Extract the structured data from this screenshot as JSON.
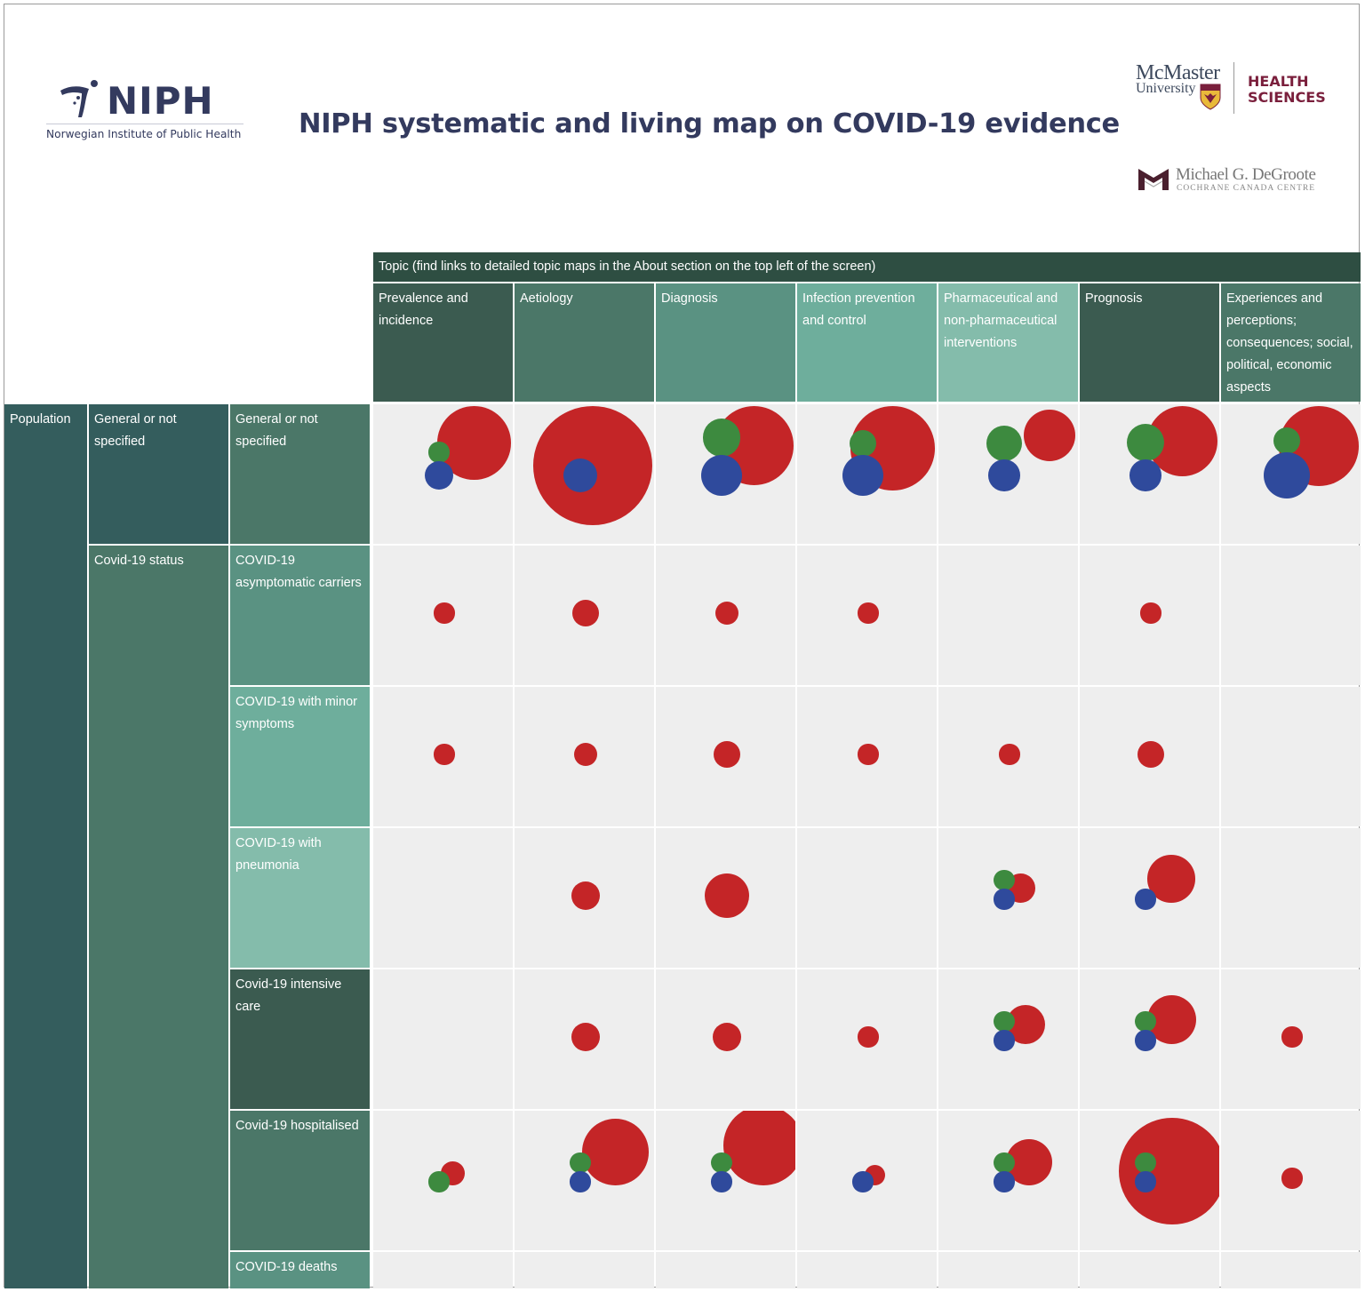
{
  "header": {
    "title": "NIPH systematic and living map on COVID-19 evidence",
    "niph_logo_text": "NIPH",
    "niph_logo_subtitle": "Norwegian Institute of Public Health",
    "mcmaster_name": "McMaster",
    "mcmaster_university": "University",
    "health_line1": "HEALTH",
    "health_line2": "SCIENCES",
    "degroote_name": "Michael G. DeGroote",
    "degroote_sub": "COCHRANE CANADA CENTRE"
  },
  "colors": {
    "red": "#c42527",
    "green": "#3d8a3f",
    "blue": "#2f4a9c",
    "cell_bg": "#eeeeee",
    "topic_bar": "#2e4e42"
  },
  "chart_data": {
    "type": "scatter",
    "title": "NIPH systematic and living map on COVID-19 evidence",
    "encoding": "bubble size = relative magnitude (0-100) estimated visually from marker diameter; no counts, legend or size key are shown in the image",
    "value_scale": "relative, 0-100",
    "topic_header": "Topic (find links to detailed topic maps in the About section on the top left of the screen)",
    "columns": [
      "Prevalence and incidence",
      "Aetiology",
      "Diagnosis",
      "Infection prevention and control",
      "Pharmaceutical and non-pharmaceutical interventions",
      "Prognosis",
      "Experiences and perceptions; consequences; social, political, economic aspects"
    ],
    "row_level1": "Population",
    "row_level2": [
      "General or not specified",
      "Covid-19 status"
    ],
    "rows": [
      "General or not specified",
      "COVID-19 asymptomatic carriers",
      "COVID-19 with minor symptoms",
      "COVID-19 with pneumonia",
      "Covid-19 intensive care",
      "Covid-19 hospitalised",
      "COVID-19 deaths"
    ],
    "series": [
      {
        "name": "red",
        "color": "#c42527",
        "values": [
          [
            38,
            100,
            44,
            50,
            19,
            35,
            45
          ],
          [
            3,
            5,
            4,
            3,
            0,
            3,
            0
          ],
          [
            3,
            4,
            5,
            3,
            3,
            5,
            0
          ],
          [
            0,
            6,
            14,
            0,
            6,
            16,
            0
          ],
          [
            0,
            6,
            6,
            3,
            11,
            17,
            3
          ],
          [
            4,
            31,
            45,
            3,
            15,
            80,
            3
          ],
          [
            0,
            0,
            0,
            0,
            0,
            0,
            0
          ]
        ]
      },
      {
        "name": "green",
        "color": "#3d8a3f",
        "values": [
          [
            3,
            0,
            10,
            5,
            9,
            10,
            5
          ],
          [
            0,
            0,
            0,
            0,
            0,
            0,
            0
          ],
          [
            0,
            0,
            0,
            0,
            0,
            0,
            0
          ],
          [
            0,
            0,
            0,
            0,
            3,
            0,
            0
          ],
          [
            0,
            0,
            0,
            0,
            3,
            3,
            0
          ],
          [
            3,
            3,
            3,
            0,
            3,
            3,
            0
          ],
          [
            0,
            0,
            0,
            0,
            0,
            0,
            0
          ]
        ]
      },
      {
        "name": "blue",
        "color": "#2f4a9c",
        "values": [
          [
            6,
            8,
            12,
            12,
            7,
            7,
            15
          ],
          [
            0,
            0,
            0,
            0,
            0,
            0,
            0
          ],
          [
            0,
            0,
            0,
            0,
            0,
            0,
            0
          ],
          [
            0,
            0,
            0,
            0,
            3,
            3,
            0
          ],
          [
            0,
            0,
            0,
            0,
            3,
            3,
            0
          ],
          [
            0,
            3,
            3,
            3,
            3,
            3,
            0
          ],
          [
            0,
            0,
            0,
            0,
            0,
            0,
            0
          ]
        ]
      }
    ]
  }
}
